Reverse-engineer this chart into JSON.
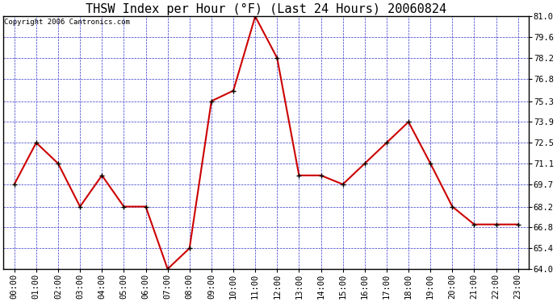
{
  "title": "THSW Index per Hour (°F) (Last 24 Hours) 20060824",
  "copyright": "Copyright 2006 Cantronics.com",
  "hours": [
    "00:00",
    "01:00",
    "02:00",
    "03:00",
    "04:00",
    "05:00",
    "06:00",
    "07:00",
    "08:00",
    "09:00",
    "10:00",
    "11:00",
    "12:00",
    "13:00",
    "14:00",
    "15:00",
    "16:00",
    "17:00",
    "18:00",
    "19:00",
    "20:00",
    "21:00",
    "22:00",
    "23:00"
  ],
  "values": [
    69.7,
    72.5,
    71.1,
    68.2,
    70.3,
    68.2,
    68.2,
    64.0,
    65.4,
    75.3,
    76.0,
    81.0,
    78.2,
    70.3,
    70.3,
    69.7,
    71.1,
    72.5,
    73.9,
    71.1,
    68.2,
    67.0,
    67.0,
    67.0
  ],
  "y_ticks": [
    64.0,
    65.4,
    66.8,
    68.2,
    69.7,
    71.1,
    72.5,
    73.9,
    75.3,
    76.8,
    78.2,
    79.6,
    81.0
  ],
  "ylim": [
    64.0,
    81.0
  ],
  "bg_color": "#ffffff",
  "plot_bg_color": "#ffffff",
  "line_color": "#cc0000",
  "marker_color": "#000000",
  "grid_color": "#3333cc",
  "title_color": "#000000",
  "copyright_color": "#000000",
  "axis_color": "#000000",
  "tick_label_color": "#000000",
  "title_fontsize": 11,
  "tick_fontsize": 7.5,
  "copyright_fontsize": 6.5
}
